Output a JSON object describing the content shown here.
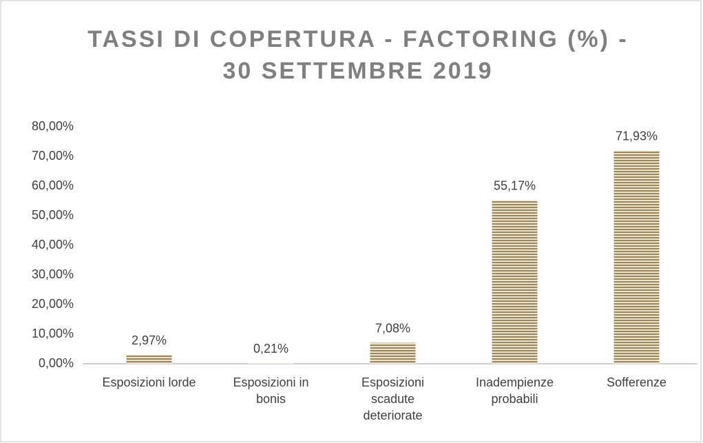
{
  "chart_data": {
    "type": "bar",
    "title": "TASSI DI COPERTURA - FACTORING (%) - 30 SETTEMBRE 2019",
    "categories": [
      "Esposizioni lorde",
      "Esposizioni in bonis",
      "Esposizioni scadute deteriorate",
      "Inadempienze probabili",
      "Sofferenze"
    ],
    "values": [
      2.97,
      0.21,
      7.08,
      55.17,
      71.93
    ],
    "value_labels": [
      "2,97%",
      "0,21%",
      "7,08%",
      "55,17%",
      "71,93%"
    ],
    "color": "#9a8858",
    "ylim": [
      0,
      80
    ],
    "yticks": [
      {
        "value": 0,
        "label": "0,00%"
      },
      {
        "value": 10,
        "label": "10,00%"
      },
      {
        "value": 20,
        "label": "20,00%"
      },
      {
        "value": 30,
        "label": "30,00%"
      },
      {
        "value": 40,
        "label": "40,00%"
      },
      {
        "value": 50,
        "label": "50,00%"
      },
      {
        "value": 60,
        "label": "60,00%"
      },
      {
        "value": 70,
        "label": "70,00%"
      },
      {
        "value": 80,
        "label": "80,00%"
      }
    ],
    "grid": false
  }
}
